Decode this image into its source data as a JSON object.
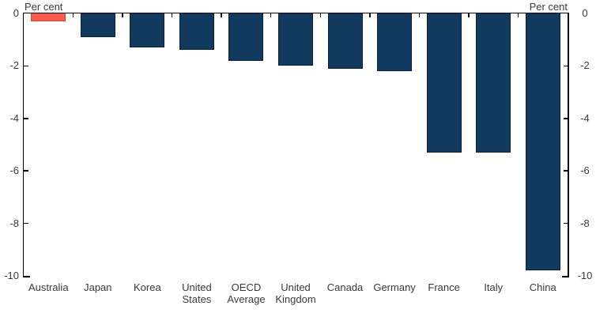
{
  "chart_data": {
    "type": "bar",
    "title": "",
    "ylabel_left": "Per cent",
    "ylabel_right": "Per cent",
    "categories": [
      "Australia",
      "Japan",
      "Korea",
      "United States",
      "OECD Average",
      "United Kingdom",
      "Canada",
      "Germany",
      "France",
      "Italy",
      "China"
    ],
    "values": [
      -0.3,
      -0.9,
      -1.3,
      -1.4,
      -1.8,
      -2.0,
      -2.1,
      -2.2,
      -5.3,
      -5.3,
      -9.8
    ],
    "ylim": [
      -10,
      0
    ],
    "yticks": [
      0,
      -2,
      -4,
      -6,
      -8,
      -10
    ],
    "ytick_labels": [
      "0",
      "-2",
      "-4",
      "-6",
      "-8",
      "-10"
    ],
    "grid": false,
    "legend_position": "none",
    "bar_color_default": "#123A5F",
    "bar_border_default": "#081F38",
    "bar_color_highlight": "#FA5A4B",
    "bar_border_highlight": "#D8453A",
    "highlight_index": 0,
    "axis_color": "#000000",
    "text_color": "#3A3A3A",
    "background_color": "#FFFFFF"
  }
}
